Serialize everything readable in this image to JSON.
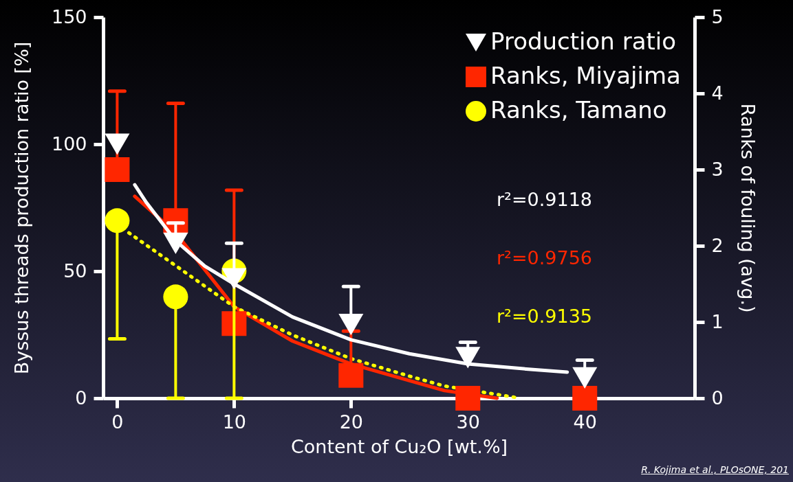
{
  "chart_data": {
    "type": "scatter",
    "xlabel": "Content of Cu₂O [wt.%]",
    "ylabel": "Byssus threads production ratio [%]",
    "y2label": "Ranks of fouling (avg.)",
    "x": [
      0,
      5,
      10,
      20,
      30,
      40
    ],
    "xlim": [
      -1.2,
      49.4
    ],
    "xticks": [
      0,
      10,
      20,
      30,
      40
    ],
    "ylim": [
      0,
      150
    ],
    "yticks": [
      0,
      50,
      100,
      150
    ],
    "y2lim": [
      0,
      5
    ],
    "y2ticks": [
      0,
      1,
      2,
      3,
      4,
      5
    ],
    "grid": false,
    "legend": "top right",
    "series": [
      {
        "name": "Production ratio",
        "marker": "triangle",
        "color": "#ffffff",
        "values": [
          100,
          61,
          47,
          29,
          16,
          8
        ],
        "errors": [
          null,
          [
            61,
            69
          ],
          [
            47,
            61
          ],
          [
            29,
            44
          ],
          [
            16,
            22
          ],
          [
            8,
            15
          ]
        ]
      },
      {
        "name": "Ranks, Miyajima",
        "marker": "square",
        "color": "#ff2600",
        "axis": "y2",
        "values": [
          3.0,
          2.33,
          0.98,
          0.3,
          0,
          0
        ],
        "errors": [
          [
            3.0,
            4.03
          ],
          [
            2.33,
            3.87
          ],
          [
            0.98,
            2.73
          ],
          [
            0.3,
            0.88
          ],
          null,
          null
        ]
      },
      {
        "name": "Ranks, Tamano",
        "marker": "circle",
        "color": "#ffff00",
        "axis": "y2",
        "values": [
          2.33,
          1.33,
          1.67,
          null,
          null,
          null
        ],
        "errors": [
          [
            0.78,
            2.33
          ],
          [
            0,
            1.33
          ],
          [
            0,
            1.67
          ],
          null,
          null,
          null
        ]
      },
      {
        "type": "line",
        "color": "#ffffff",
        "line_style": "solid",
        "x": [
          1.5,
          2.5,
          5,
          7.5,
          10,
          15,
          20,
          25,
          30,
          35,
          38.5
        ],
        "values": [
          84,
          77,
          62,
          52,
          45,
          32,
          23,
          17.5,
          13.5,
          11.5,
          10.3
        ]
      },
      {
        "type": "line",
        "color": "#ff2600",
        "line_style": "solid",
        "axis": "y2",
        "x": [
          1.5,
          5,
          10,
          15,
          20,
          25,
          28,
          32.5
        ],
        "values": [
          2.65,
          2.17,
          1.2,
          0.75,
          0.45,
          0.23,
          0.1,
          0
        ]
      },
      {
        "type": "line",
        "color": "#ffff00",
        "line_style": "dotted",
        "axis": "y2",
        "x": [
          1,
          5,
          10,
          15,
          20,
          25,
          28,
          34.5
        ],
        "values": [
          2.17,
          1.74,
          1.2,
          0.83,
          0.52,
          0.29,
          0.16,
          0
        ]
      }
    ],
    "annotations": [
      "r²=0.9118",
      "r²=0.9756",
      "r²=0.9135",
      "R. Kojima et al., PLOsONE, 201"
    ]
  }
}
